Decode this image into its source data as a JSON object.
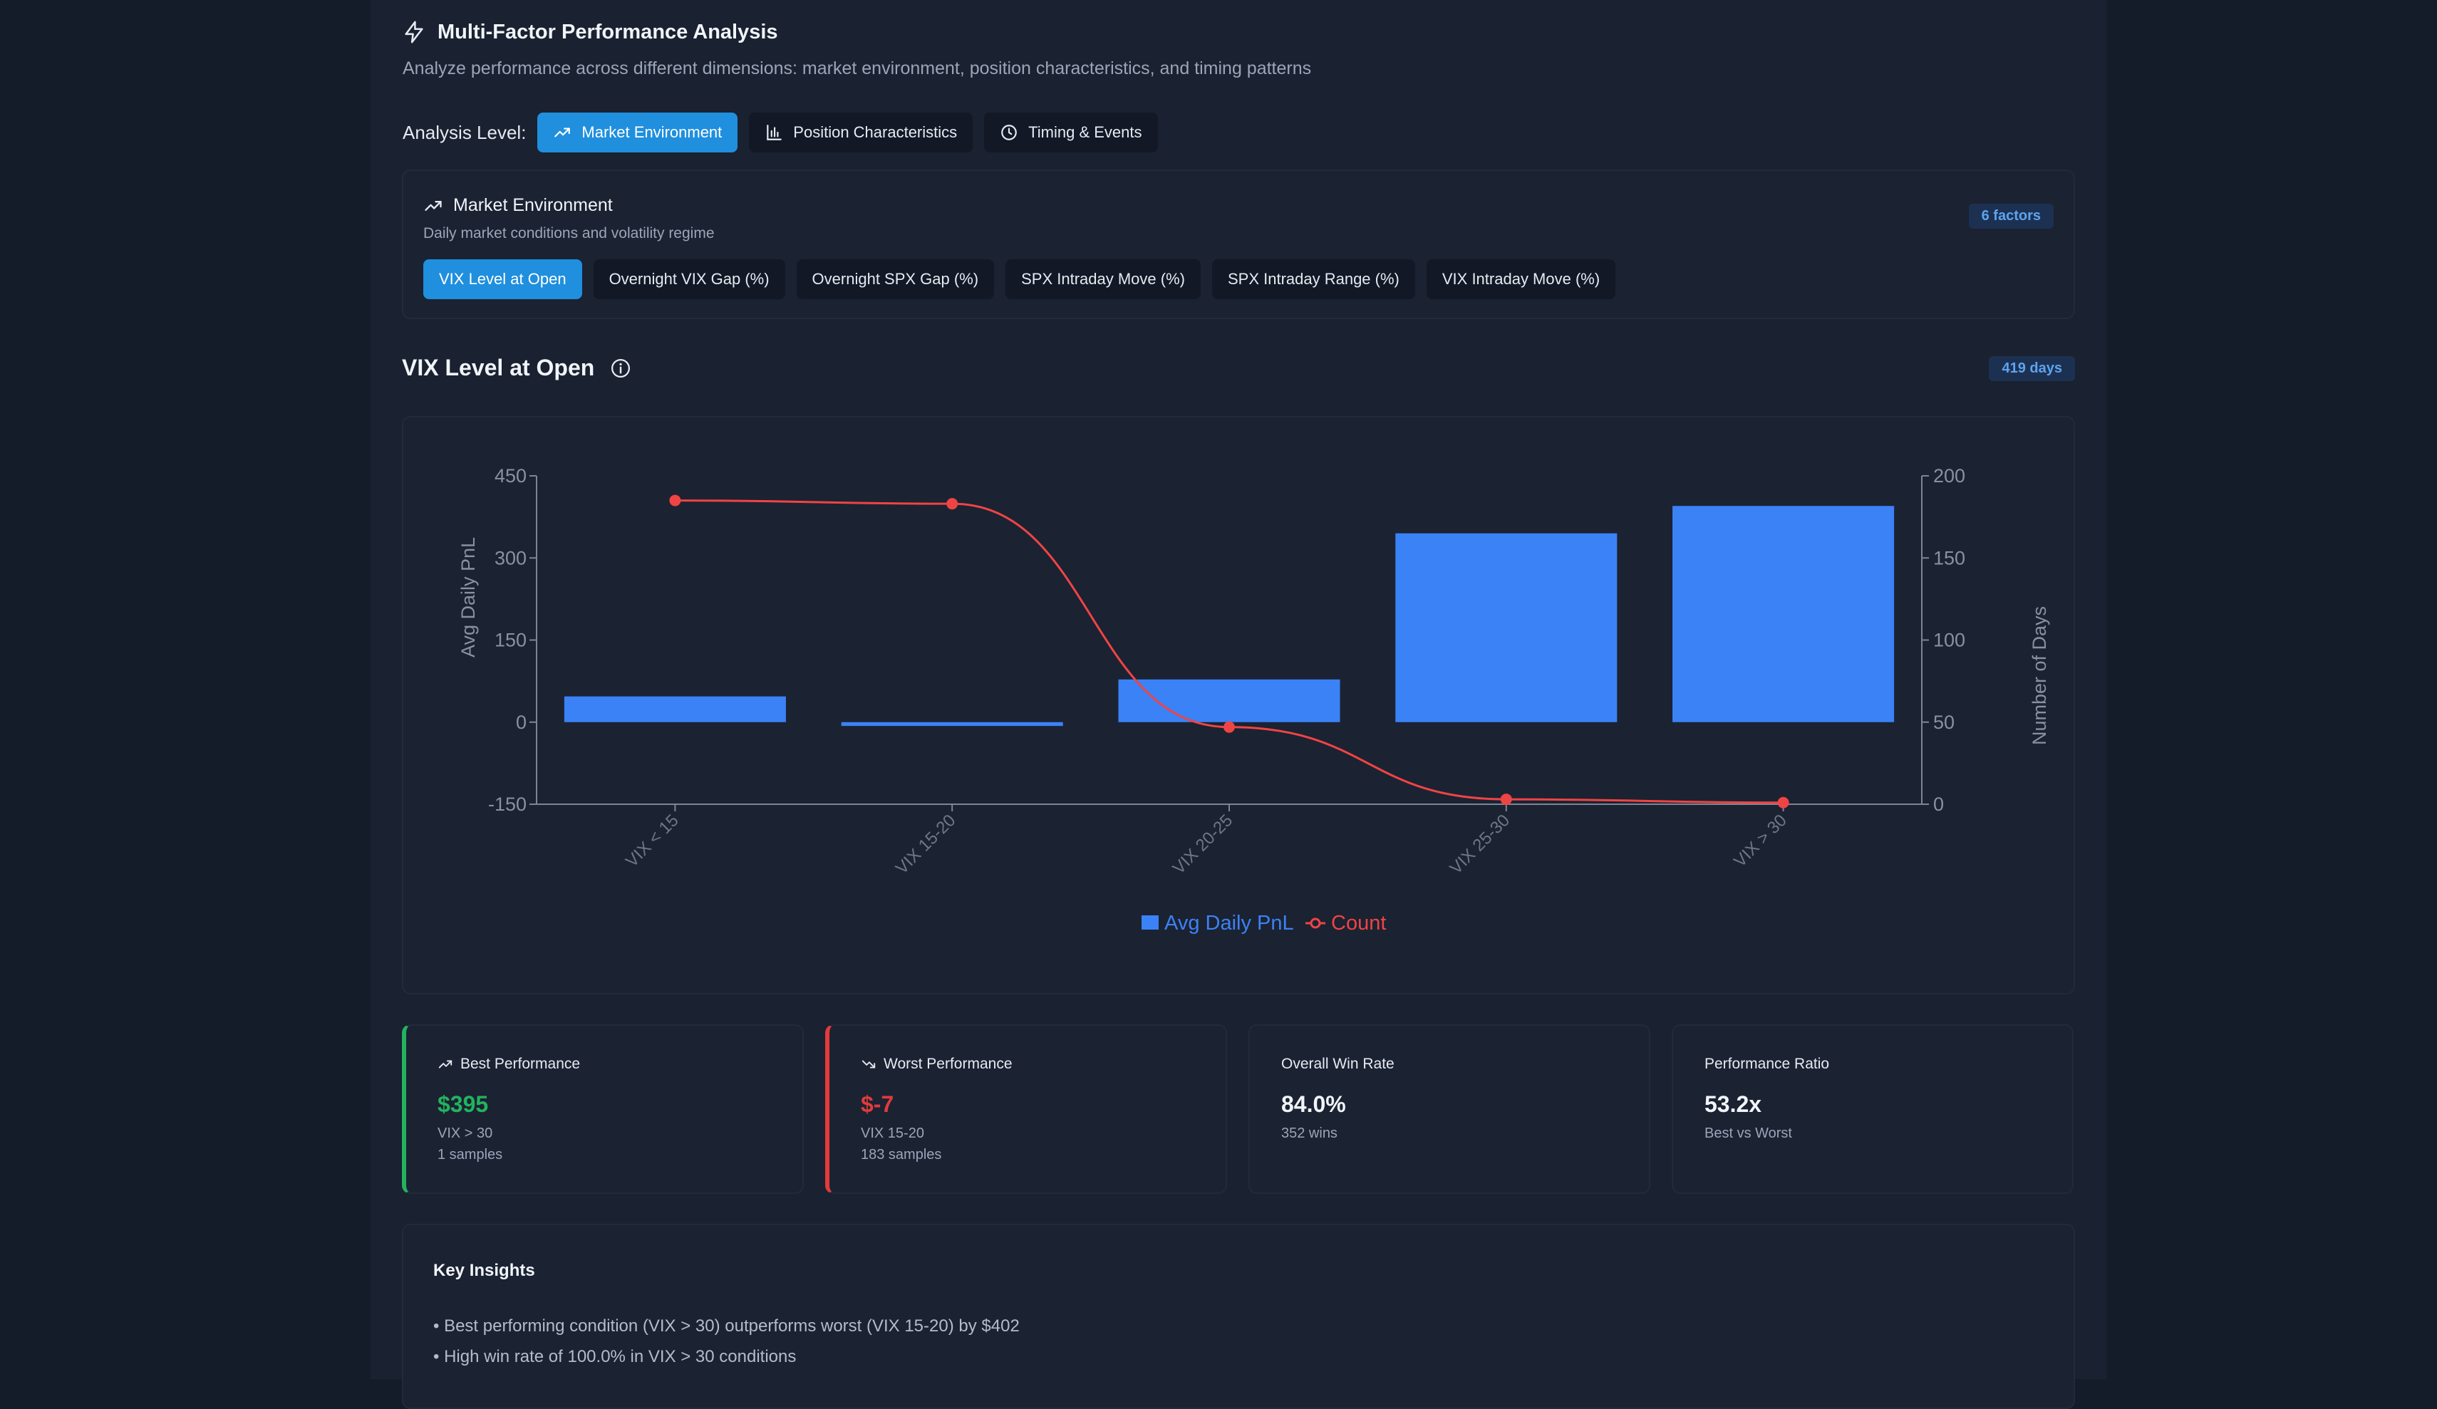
{
  "header": {
    "title": "Multi-Factor Performance Analysis",
    "subtitle": "Analyze performance across different dimensions: market environment, position characteristics, and timing patterns"
  },
  "analysis_level": {
    "label": "Analysis Level:",
    "options": [
      {
        "label": "Market Environment",
        "icon": "trending-up-icon",
        "active": true
      },
      {
        "label": "Position Characteristics",
        "icon": "bar-chart-icon",
        "active": false
      },
      {
        "label": "Timing & Events",
        "icon": "clock-icon",
        "active": false
      }
    ]
  },
  "environment": {
    "title": "Market Environment",
    "description": "Daily market conditions and volatility regime",
    "factors_badge": "6 factors",
    "factors": [
      {
        "label": "VIX Level at Open",
        "active": true
      },
      {
        "label": "Overnight VIX Gap (%)",
        "active": false
      },
      {
        "label": "Overnight SPX Gap (%)",
        "active": false
      },
      {
        "label": "SPX Intraday Move (%)",
        "active": false
      },
      {
        "label": "SPX Intraday Range (%)",
        "active": false
      },
      {
        "label": "VIX Intraday Move (%)",
        "active": false
      }
    ]
  },
  "chart_section": {
    "title": "VIX Level at Open",
    "days_badge": "419 days"
  },
  "chart_data": {
    "type": "bar",
    "categories": [
      "VIX < 15",
      "VIX 15-20",
      "VIX 20-25",
      "VIX 25-30",
      "VIX > 30"
    ],
    "series": [
      {
        "name": "Avg Daily PnL",
        "type": "bar",
        "axis": "left",
        "values": [
          47,
          -7,
          78,
          345,
          395
        ]
      },
      {
        "name": "Count",
        "type": "line",
        "axis": "right",
        "values": [
          185,
          183,
          47,
          3,
          1
        ]
      }
    ],
    "ylabel": "Avg Daily PnL",
    "y2label": "Number of Days",
    "ylim": [
      -150,
      450
    ],
    "y2lim": [
      0,
      200
    ],
    "yticks": [
      "450",
      "300",
      "150",
      "0",
      "-150"
    ],
    "y2ticks": [
      "200",
      "150",
      "100",
      "50",
      "0"
    ],
    "legend_position": "bottom",
    "colors": {
      "bar": "#3b82f6",
      "line": "#ef4444"
    }
  },
  "stats": [
    {
      "label": "Best Performance",
      "icon": "trending-up-icon",
      "value": "$395",
      "sub1": "VIX > 30",
      "sub2": "1 samples",
      "tone": "green"
    },
    {
      "label": "Worst Performance",
      "icon": "trending-down-icon",
      "value": "$-7",
      "sub1": "VIX 15-20",
      "sub2": "183 samples",
      "tone": "red"
    },
    {
      "label": "Overall Win Rate",
      "value": "84.0%",
      "sub1": "352 wins",
      "tone": "neutral"
    },
    {
      "label": "Performance Ratio",
      "value": "53.2x",
      "sub1": "Best vs Worst",
      "tone": "neutral"
    }
  ],
  "insights": {
    "title": "Key Insights",
    "items": [
      "• Best performing condition (VIX > 30) outperforms worst (VIX 15-20) by $402",
      "• High win rate of 100.0% in VIX > 30 conditions"
    ]
  }
}
